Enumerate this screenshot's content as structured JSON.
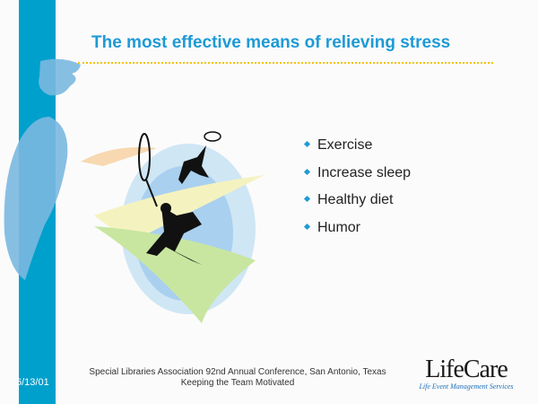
{
  "slide": {
    "title": "The most effective means of relieving stress",
    "bullets": [
      "Exercise",
      "Increase sleep",
      "Healthy diet",
      "Humor"
    ],
    "date": "6/13/01",
    "footer_line1": "Special Libraries Association 92nd Annual Conference, San Antonio, Texas",
    "footer_line2": "Keeping the Team Motivated",
    "logo_name": "LifeCare",
    "logo_tagline": "Life Event Management Services"
  },
  "colors": {
    "accent": "#00a0cc",
    "title": "#1e9ad6",
    "rule": "#f2c200"
  }
}
